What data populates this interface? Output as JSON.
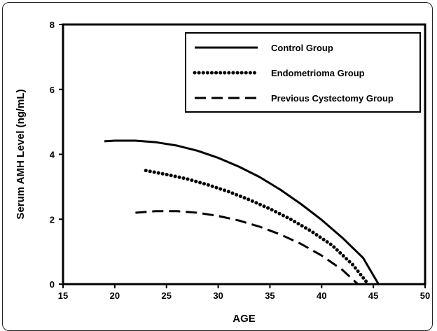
{
  "chart_data": {
    "type": "line",
    "title": "",
    "xlabel": "AGE",
    "ylabel": "Serum AMH Level (ng/mL)",
    "xlim": [
      15,
      50
    ],
    "ylim": [
      0,
      8
    ],
    "x_ticks": [
      "15",
      "20",
      "25",
      "30",
      "35",
      "40",
      "45",
      "50"
    ],
    "y_ticks": [
      "0",
      "2",
      "4",
      "6",
      "8"
    ],
    "grid": false,
    "legend_position": "top-right",
    "series": [
      {
        "name": "Control Group",
        "style": "solid",
        "color": "#000000",
        "x": [
          19,
          20,
          22,
          24,
          26,
          28,
          30,
          32,
          34,
          36,
          38,
          40,
          42,
          44,
          45.5
        ],
        "y": [
          4.4,
          4.42,
          4.42,
          4.37,
          4.27,
          4.11,
          3.89,
          3.62,
          3.3,
          2.91,
          2.47,
          1.98,
          1.43,
          0.81,
          0.0
        ]
      },
      {
        "name": "Endometrioma Group",
        "style": "dotted",
        "color": "#000000",
        "x": [
          23,
          25,
          27,
          29,
          31,
          33,
          35,
          37,
          39,
          41,
          43,
          44.5
        ],
        "y": [
          3.5,
          3.38,
          3.24,
          3.06,
          2.85,
          2.6,
          2.32,
          2.0,
          1.63,
          1.2,
          0.6,
          0.0
        ]
      },
      {
        "name": "Previous Cystectomy Group",
        "style": "dashed",
        "color": "#000000",
        "x": [
          22,
          24,
          26,
          28,
          30,
          32,
          34,
          36,
          38,
          40,
          42,
          43.5
        ],
        "y": [
          2.2,
          2.25,
          2.25,
          2.2,
          2.1,
          1.96,
          1.77,
          1.53,
          1.24,
          0.88,
          0.44,
          0.0
        ]
      }
    ]
  }
}
